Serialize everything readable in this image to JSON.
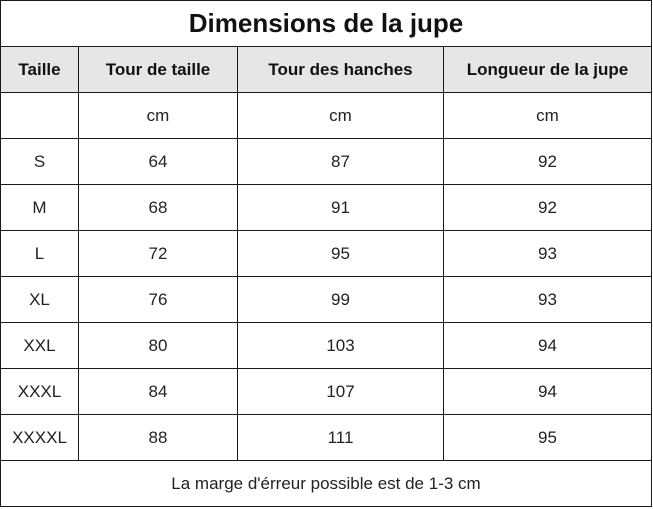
{
  "title": "Dimensions de la jupe",
  "columns": [
    "Taille",
    "Tour de taille",
    "Tour des hanches",
    "Longueur de la jupe"
  ],
  "units": [
    "",
    "cm",
    "cm",
    "cm"
  ],
  "rows": [
    [
      "S",
      "64",
      "87",
      "92"
    ],
    [
      "M",
      "68",
      "91",
      "92"
    ],
    [
      "L",
      "72",
      "95",
      "93"
    ],
    [
      "XL",
      "76",
      "99",
      "93"
    ],
    [
      "XXL",
      "80",
      "103",
      "94"
    ],
    [
      "XXXL",
      "84",
      "107",
      "94"
    ],
    [
      "XXXXL",
      "88",
      "111",
      "95"
    ]
  ],
  "footnote": "La marge d'érreur possible est de 1-3 cm",
  "colors": {
    "header_bg": "#e6e6e6",
    "border": "#1a1a1a"
  }
}
